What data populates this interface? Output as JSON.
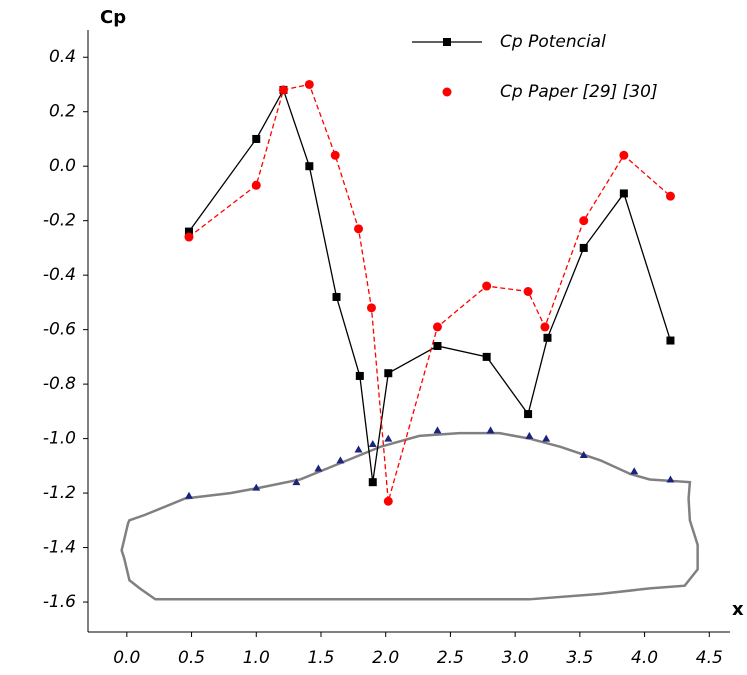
{
  "chart_data": {
    "type": "line",
    "x_label": "x",
    "y_label": "Cp",
    "xlim": [
      -0.3,
      4.66
    ],
    "ylim": [
      -1.71,
      0.5
    ],
    "xticks": [
      {
        "value": 0,
        "label": "0.0"
      },
      0.5,
      {
        "value": 1,
        "label": "1.0"
      },
      1.5,
      {
        "value": 2,
        "label": "2.0"
      },
      2.5,
      {
        "value": 3,
        "label": "3.0"
      },
      3.5,
      {
        "value": 4,
        "label": "4.0"
      },
      4.5
    ],
    "yticks": [
      0.4,
      0.2,
      {
        "value": 0,
        "label": "0.0"
      },
      -0.2,
      -0.4,
      -0.6,
      -0.8,
      {
        "value": -1,
        "label": "-1.0"
      },
      -1.2,
      -1.4,
      -1.6
    ],
    "legend": "top-right",
    "series": [
      {
        "name": "Cp Potencial",
        "color": "#000000",
        "marker": "square",
        "dash": false,
        "x": [
          0.48,
          1.0,
          1.21,
          1.41,
          1.62,
          1.8,
          1.9,
          2.02,
          2.4,
          2.78,
          3.1,
          3.25,
          3.53,
          3.84,
          4.2
        ],
        "values": [
          -0.24,
          0.1,
          0.28,
          0.0,
          -0.48,
          -0.77,
          -1.16,
          -0.76,
          -0.66,
          -0.7,
          -0.91,
          -0.63,
          -0.3,
          -0.1,
          -0.64
        ]
      },
      {
        "name": "Cp Paper [29] [30]",
        "color": "#ff0000",
        "marker": "circle",
        "dash": true,
        "x": [
          0.48,
          1.0,
          1.21,
          1.41,
          1.61,
          1.79,
          1.89,
          2.02,
          2.4,
          2.78,
          3.1,
          3.23,
          3.53,
          3.84,
          4.2
        ],
        "values": [
          -0.26,
          -0.07,
          0.28,
          0.3,
          0.04,
          -0.23,
          -0.52,
          -1.23,
          -0.59,
          -0.44,
          -0.46,
          -0.59,
          -0.2,
          0.04,
          -0.11
        ]
      },
      {
        "color": "#1a237e",
        "marker": "triangle",
        "line": false,
        "x": [
          0.48,
          1.0,
          1.31,
          1.48,
          1.65,
          1.79,
          1.9,
          2.02,
          2.4,
          2.81,
          3.11,
          3.24,
          3.53,
          3.92,
          4.2
        ],
        "values": [
          -1.21,
          -1.18,
          -1.16,
          -1.11,
          -1.08,
          -1.04,
          -1.02,
          -1.0,
          -0.97,
          -0.97,
          -0.99,
          -1.0,
          -1.06,
          -1.12,
          -1.15
        ]
      }
    ],
    "outline": {
      "color": "#808080",
      "x": [
        0.02,
        0.14,
        0.45,
        0.8,
        1.03,
        1.34,
        1.65,
        1.96,
        2.26,
        2.57,
        2.88,
        3.11,
        3.35,
        3.66,
        3.89,
        4.04,
        4.35,
        4.34,
        4.35,
        4.41,
        4.41,
        4.31,
        4.04,
        3.66,
        3.11,
        2.5,
        1.34,
        0.22,
        0.1,
        0.02,
        -0.02,
        -0.04,
        -0.02,
        0.01
      ],
      "y": [
        -1.3,
        -1.28,
        -1.22,
        -1.2,
        -1.18,
        -1.15,
        -1.09,
        -1.03,
        -0.99,
        -0.98,
        -0.98,
        -1.0,
        -1.03,
        -1.08,
        -1.13,
        -1.15,
        -1.16,
        -1.22,
        -1.3,
        -1.39,
        -1.48,
        -1.54,
        -1.55,
        -1.57,
        -1.59,
        -1.59,
        -1.59,
        -1.59,
        -1.55,
        -1.52,
        -1.44,
        -1.41,
        -1.37,
        -1.31
      ]
    }
  }
}
